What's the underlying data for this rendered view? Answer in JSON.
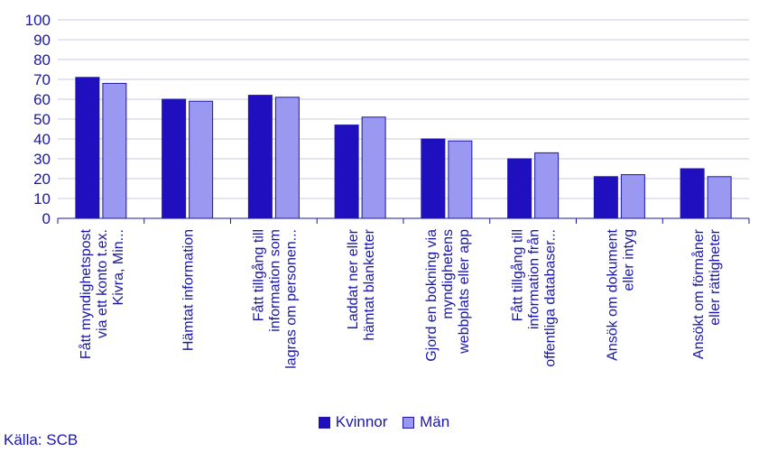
{
  "chart_data": {
    "type": "bar",
    "categories": [
      [
        "Fått myndighetspost",
        "via ett konto t.ex.",
        "Kivra, Min..."
      ],
      [
        "Hämtat information"
      ],
      [
        "Fått tillgång till",
        "information som",
        "lagras om personen..."
      ],
      [
        "Laddat ner eller",
        "hämtat blanketter"
      ],
      [
        "Gjord en bokning via",
        "myndighetens",
        "webbplats eller app"
      ],
      [
        "Fått tillgång till",
        "information från",
        "offentliga databaser..."
      ],
      [
        "Ansök om dokument",
        "eller intyg"
      ],
      [
        "Ansökt om förmåner",
        "eller rättigheter"
      ]
    ],
    "series": [
      {
        "name": "Kvinnor",
        "color": "#1f0fbf",
        "values": [
          71,
          60,
          62,
          47,
          40,
          30,
          21,
          25
        ]
      },
      {
        "name": "Män",
        "color": "#9a98f0",
        "values": [
          68,
          59,
          61,
          51,
          39,
          33,
          22,
          21
        ]
      }
    ],
    "ylim": [
      0,
      100
    ],
    "yticks": [
      0,
      10,
      20,
      30,
      40,
      50,
      60,
      70,
      80,
      90,
      100
    ],
    "grid": true,
    "legend": "bottom"
  },
  "legend": {
    "kvinnor": "Kvinnor",
    "man": "Män"
  },
  "source": "Källa: SCB",
  "colors": {
    "text": "#1a17a8",
    "grid": "#c8c8d8",
    "axis": "#1a17a8"
  }
}
